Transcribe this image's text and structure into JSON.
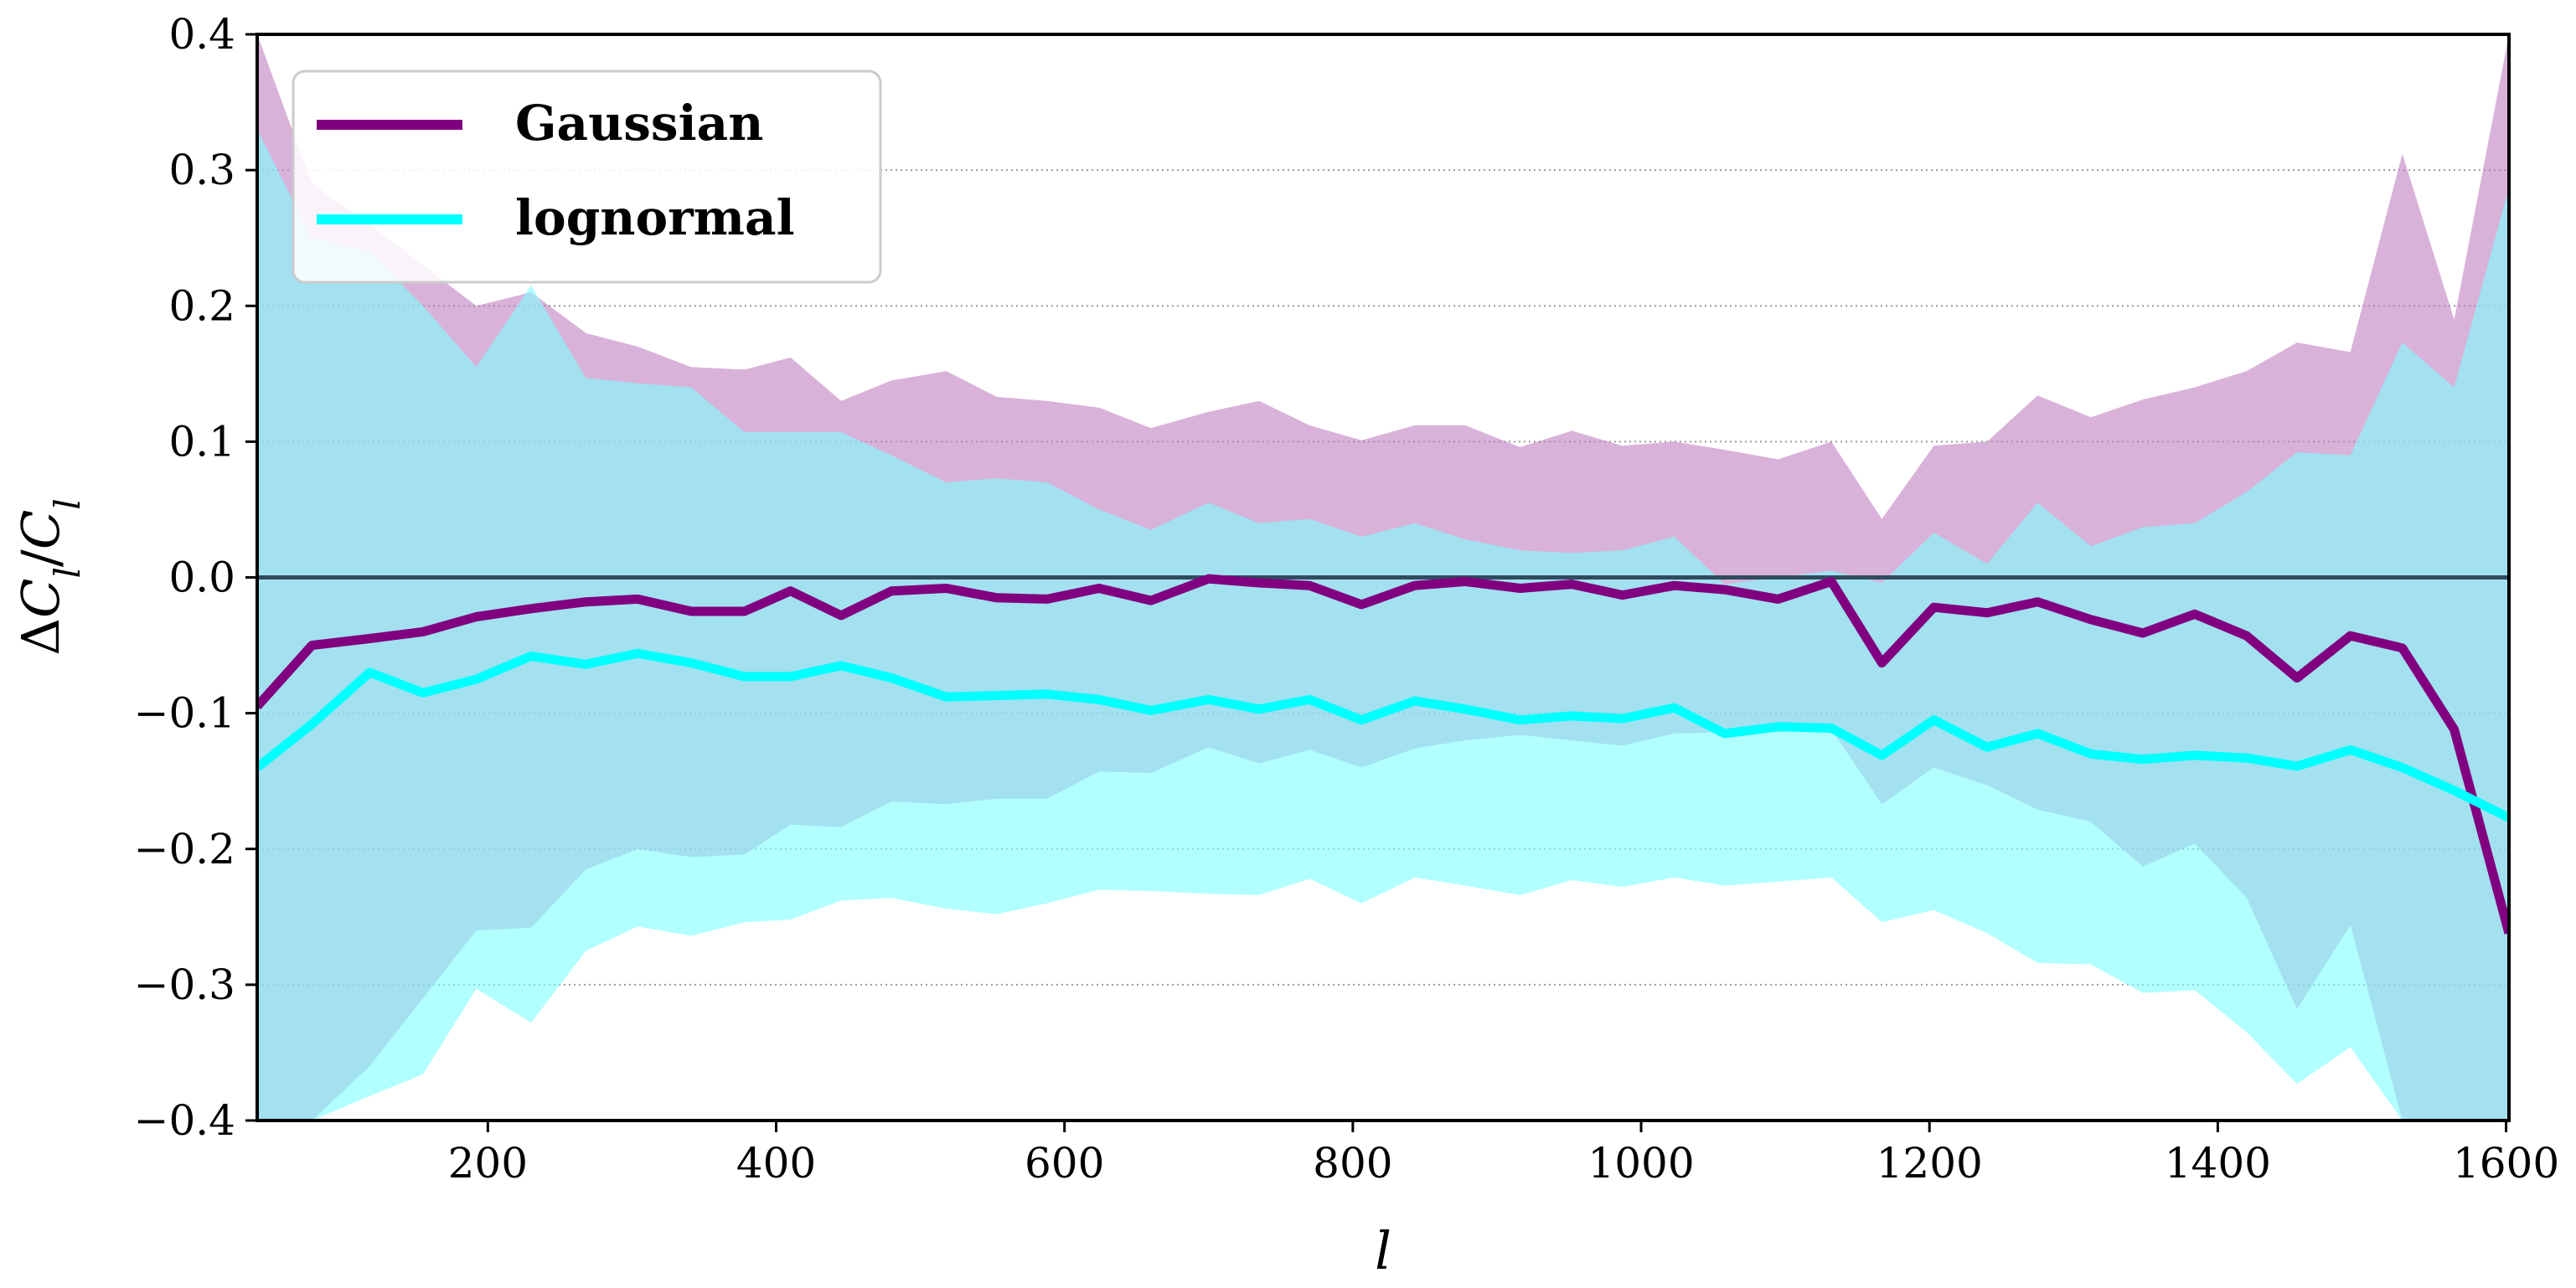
{
  "chart_data": {
    "type": "line",
    "xlabel": "l",
    "ylabel": "ΔC_l/C_l",
    "xlim": [
      40,
      1602
    ],
    "ylim": [
      -0.4,
      0.4
    ],
    "xticks": [
      200,
      400,
      600,
      800,
      1000,
      1200,
      1400,
      1600
    ],
    "xtick_labels": [
      "200",
      "400",
      "600",
      "800",
      "1000",
      "1200",
      "1400",
      "1600"
    ],
    "yticks": [
      -0.4,
      -0.3,
      -0.2,
      -0.1,
      0.0,
      0.1,
      0.2,
      0.3,
      0.4
    ],
    "ytick_labels": [
      "−0.4",
      "−0.3",
      "−0.2",
      "−0.1",
      "0.0",
      "0.1",
      "0.2",
      "0.3",
      "0.4"
    ],
    "grid": "horizontal dotted",
    "reference_line": 0.0,
    "legend_position": "top-left",
    "x": [
      40,
      78,
      118,
      155,
      192,
      230,
      268,
      304,
      341,
      378,
      410,
      445,
      480,
      518,
      553,
      588,
      624,
      660,
      700,
      735,
      770,
      806,
      843,
      878,
      916,
      952,
      987,
      1023,
      1058,
      1095,
      1132,
      1167,
      1203,
      1240,
      1275,
      1312,
      1348,
      1384,
      1420,
      1455,
      1492,
      1528,
      1564,
      1602
    ],
    "series": [
      {
        "name": "Gaussian",
        "color": "#800080",
        "band_color": "rgba(191,127,191,0.6)",
        "values": [
          -0.095,
          -0.05,
          -0.045,
          -0.04,
          -0.029,
          -0.023,
          -0.018,
          -0.016,
          -0.025,
          -0.025,
          -0.01,
          -0.028,
          -0.01,
          -0.008,
          -0.015,
          -0.016,
          -0.008,
          -0.017,
          -0.001,
          -0.004,
          -0.006,
          -0.02,
          -0.006,
          -0.003,
          -0.008,
          -0.005,
          -0.013,
          -0.006,
          -0.009,
          -0.016,
          -0.003,
          -0.063,
          -0.022,
          -0.026,
          -0.018,
          -0.031,
          -0.041,
          -0.027,
          -0.043,
          -0.074,
          -0.043,
          -0.052,
          -0.112,
          -0.262
        ],
        "upper": [
          0.4,
          0.29,
          0.26,
          0.23,
          0.2,
          0.21,
          0.18,
          0.17,
          0.155,
          0.153,
          0.162,
          0.13,
          0.145,
          0.152,
          0.133,
          0.13,
          0.125,
          0.11,
          0.122,
          0.13,
          0.112,
          0.101,
          0.112,
          0.112,
          0.096,
          0.108,
          0.097,
          0.1,
          0.094,
          0.087,
          0.1,
          0.043,
          0.097,
          0.1,
          0.134,
          0.118,
          0.131,
          0.14,
          0.152,
          0.173,
          0.166,
          0.312,
          0.19,
          0.4
        ],
        "lower": [
          -0.4,
          -0.4,
          -0.36,
          -0.31,
          -0.26,
          -0.258,
          -0.215,
          -0.2,
          -0.206,
          -0.204,
          -0.182,
          -0.184,
          -0.165,
          -0.167,
          -0.163,
          -0.163,
          -0.143,
          -0.144,
          -0.125,
          -0.137,
          -0.127,
          -0.14,
          -0.126,
          -0.12,
          -0.116,
          -0.12,
          -0.124,
          -0.115,
          -0.114,
          -0.114,
          -0.112,
          -0.167,
          -0.14,
          -0.153,
          -0.171,
          -0.18,
          -0.213,
          -0.196,
          -0.236,
          -0.318,
          -0.256,
          -0.4,
          -0.4,
          -0.4
        ]
      },
      {
        "name": "lognormal",
        "color": "#00ffff",
        "band_color": "rgba(127,255,255,0.6)",
        "values": [
          -0.14,
          -0.108,
          -0.07,
          -0.085,
          -0.075,
          -0.058,
          -0.064,
          -0.056,
          -0.063,
          -0.073,
          -0.073,
          -0.065,
          -0.074,
          -0.088,
          -0.087,
          -0.086,
          -0.09,
          -0.098,
          -0.09,
          -0.097,
          -0.09,
          -0.105,
          -0.091,
          -0.097,
          -0.105,
          -0.102,
          -0.104,
          -0.096,
          -0.115,
          -0.11,
          -0.111,
          -0.131,
          -0.105,
          -0.125,
          -0.115,
          -0.13,
          -0.134,
          -0.131,
          -0.133,
          -0.139,
          -0.127,
          -0.14,
          -0.157,
          -0.177
        ],
        "upper": [
          0.33,
          0.25,
          0.24,
          0.2,
          0.155,
          0.215,
          0.147,
          0.143,
          0.14,
          0.107,
          0.107,
          0.107,
          0.09,
          0.07,
          0.073,
          0.07,
          0.05,
          0.035,
          0.055,
          0.04,
          0.043,
          0.03,
          0.04,
          0.028,
          0.02,
          0.018,
          0.02,
          0.03,
          -0.005,
          0.0,
          0.005,
          -0.004,
          0.033,
          0.01,
          0.055,
          0.023,
          0.037,
          0.04,
          0.063,
          0.092,
          0.09,
          0.173,
          0.14,
          0.287
        ],
        "lower": [
          -0.4,
          -0.4,
          -0.382,
          -0.366,
          -0.303,
          -0.328,
          -0.275,
          -0.257,
          -0.264,
          -0.254,
          -0.252,
          -0.238,
          -0.236,
          -0.244,
          -0.248,
          -0.24,
          -0.23,
          -0.231,
          -0.233,
          -0.234,
          -0.222,
          -0.24,
          -0.221,
          -0.227,
          -0.234,
          -0.223,
          -0.228,
          -0.221,
          -0.227,
          -0.224,
          -0.221,
          -0.254,
          -0.245,
          -0.262,
          -0.284,
          -0.285,
          -0.306,
          -0.304,
          -0.335,
          -0.373,
          -0.346,
          -0.4,
          -0.4,
          -0.4
        ]
      }
    ]
  }
}
